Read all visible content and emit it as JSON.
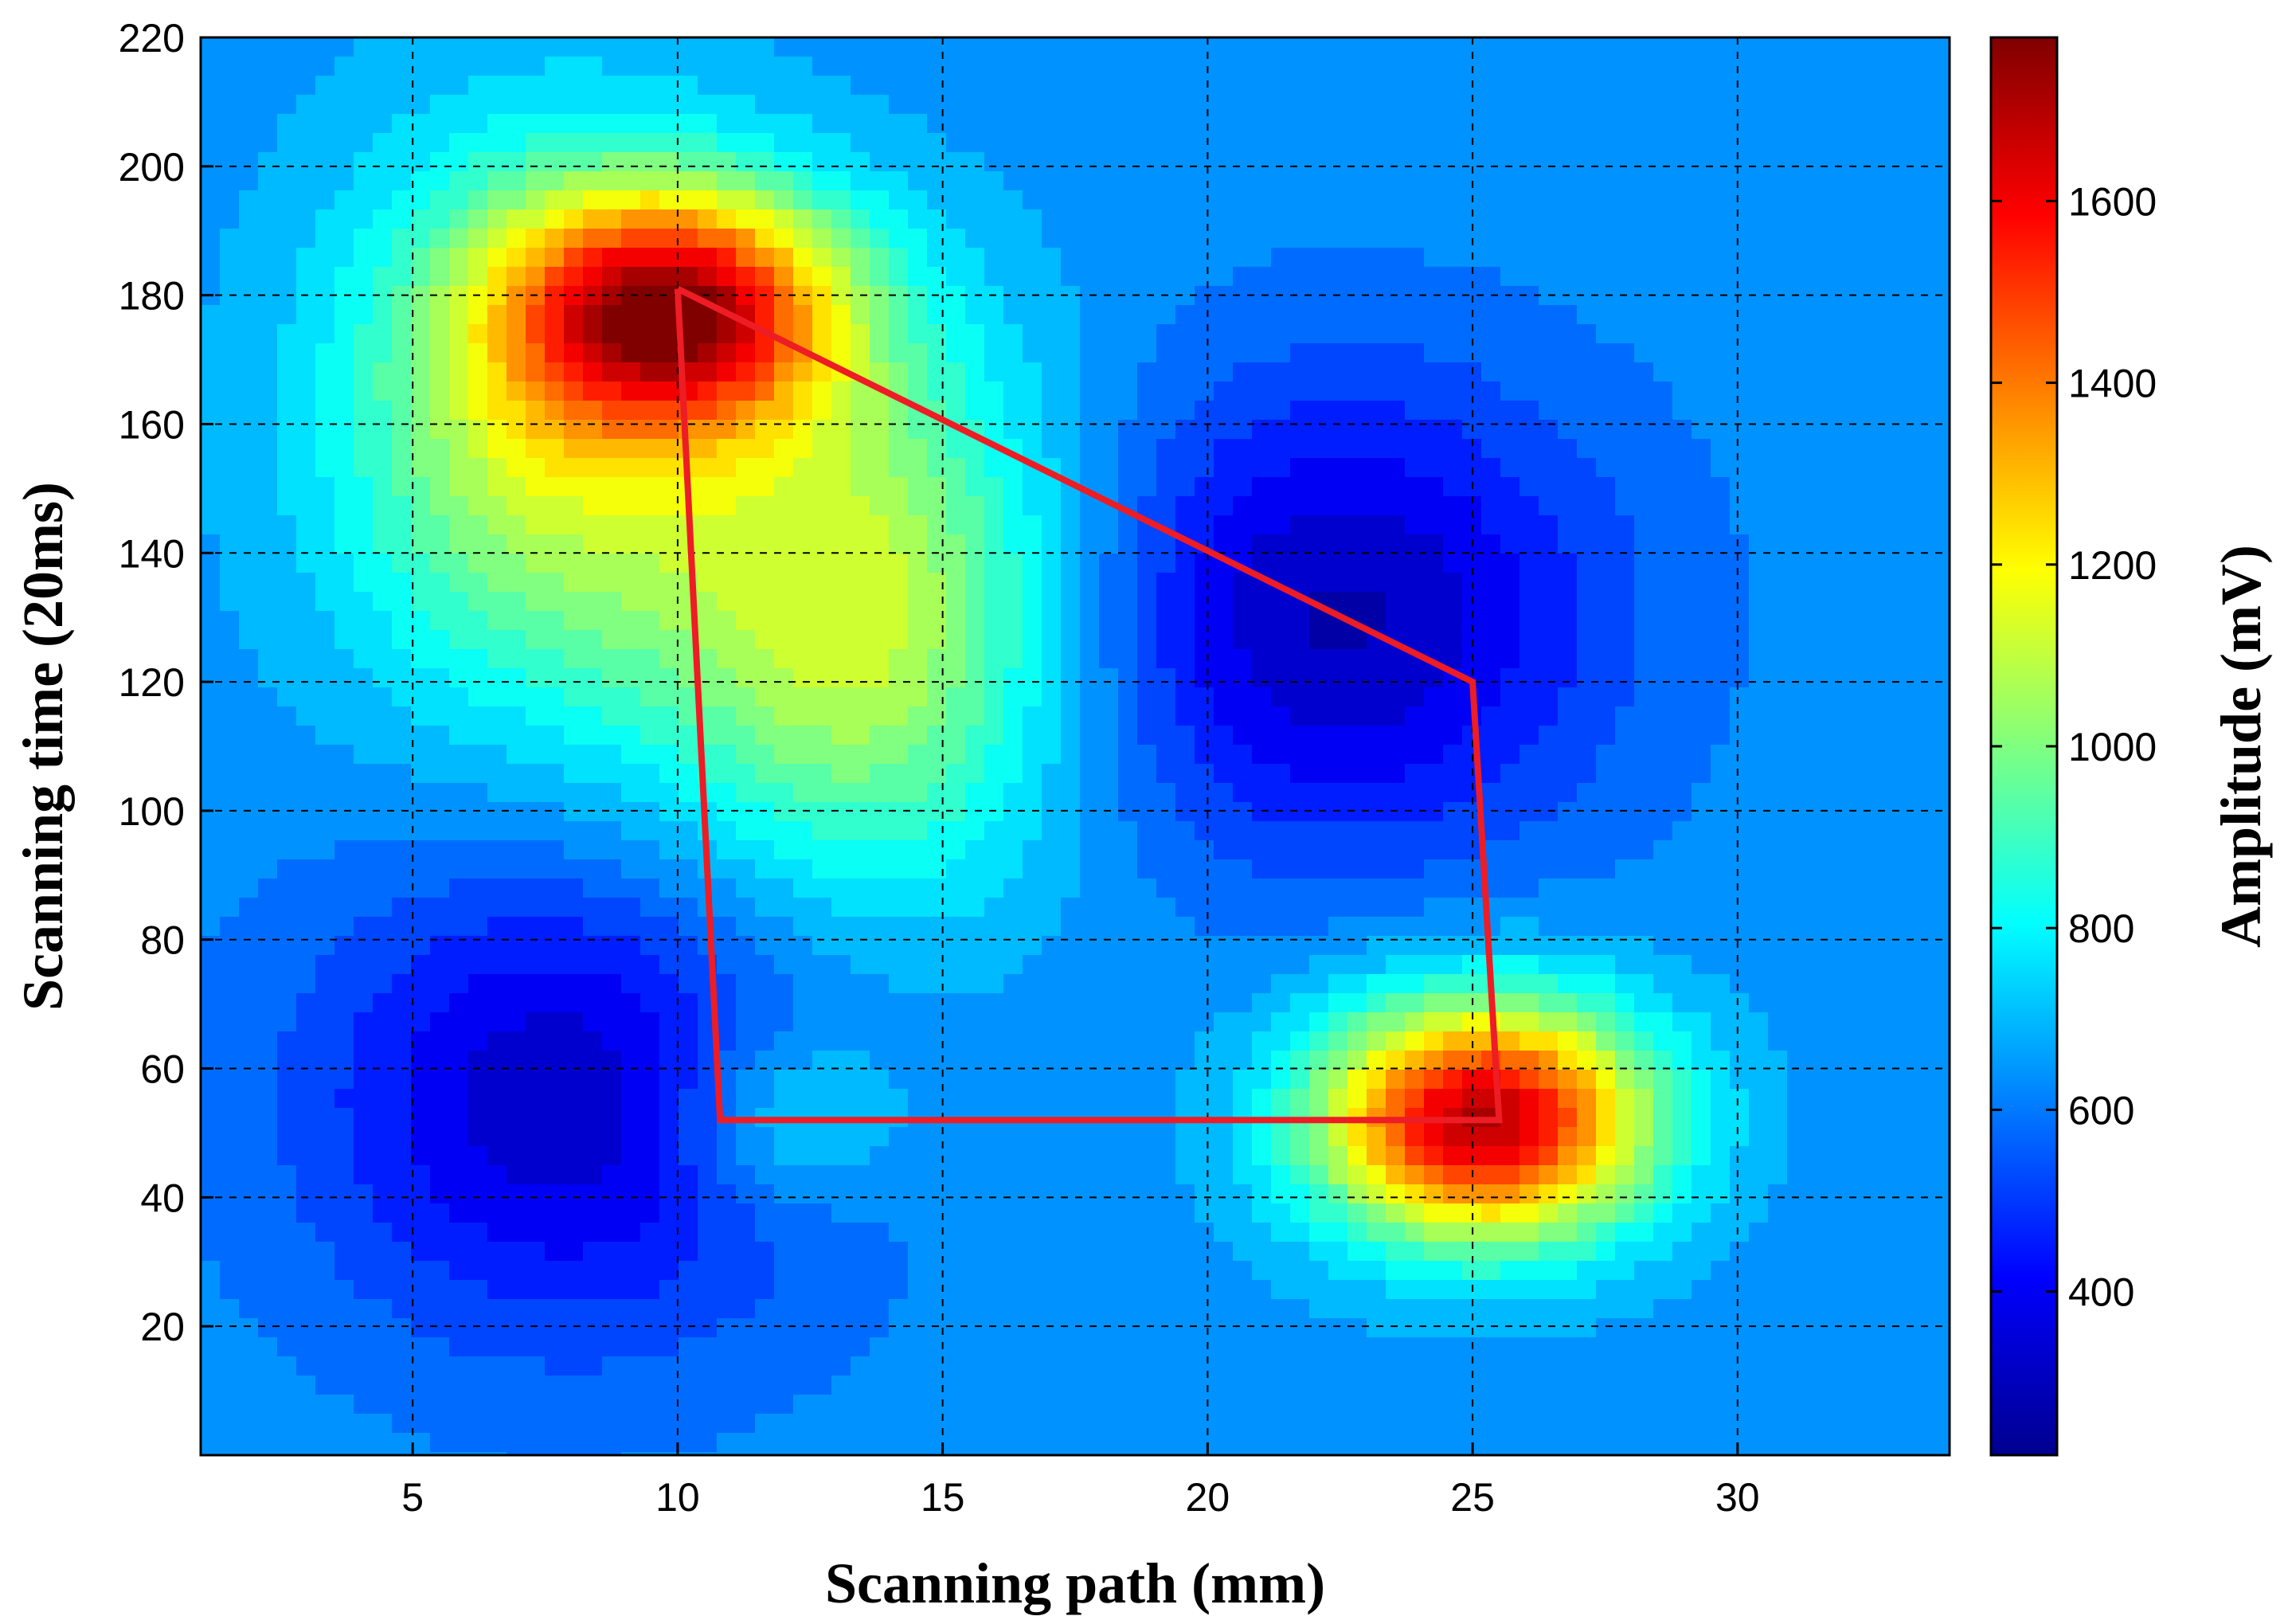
{
  "chart_data": {
    "type": "heatmap",
    "subtype": "filled-contour",
    "xlabel": "Scanning path (mm)",
    "ylabel": "Scanning time (20ms)",
    "colorbar_label": "Amplitude (mV)",
    "xlim": [
      1,
      34
    ],
    "ylim": [
      0,
      220
    ],
    "clim": [
      220,
      1780
    ],
    "x_ticks": [
      5,
      10,
      15,
      20,
      25,
      30
    ],
    "y_ticks": [
      20,
      40,
      60,
      80,
      100,
      120,
      140,
      160,
      180,
      200,
      220
    ],
    "colorbar_ticks": [
      400,
      600,
      800,
      1000,
      1200,
      1400,
      1600
    ],
    "grid": true,
    "colormap": "jet",
    "baseline_amplitude": 640,
    "features": [
      {
        "kind": "peak",
        "x": 25.2,
        "y": 52,
        "amplitude": 1700
      },
      {
        "kind": "peak",
        "x": 10.0,
        "y": 178,
        "amplitude": 1520
      },
      {
        "kind": "ridge",
        "x": 13.5,
        "y": 130,
        "amplitude": 1120
      },
      {
        "kind": "ridge",
        "x": 7.5,
        "y": 160,
        "amplitude": 1100
      },
      {
        "kind": "local-max",
        "x": 12.0,
        "y": 52,
        "amplitude": 850
      },
      {
        "kind": "trough",
        "x": 22.5,
        "y": 130,
        "amplitude": 300
      },
      {
        "kind": "trough",
        "x": 8.0,
        "y": 55,
        "amplitude": 320
      }
    ],
    "overlay_path": {
      "color": "#ee1c24",
      "points": [
        [
          10.0,
          181
        ],
        [
          25.0,
          120
        ],
        [
          25.5,
          52
        ],
        [
          10.8,
          52
        ],
        [
          10.0,
          181
        ]
      ]
    }
  }
}
